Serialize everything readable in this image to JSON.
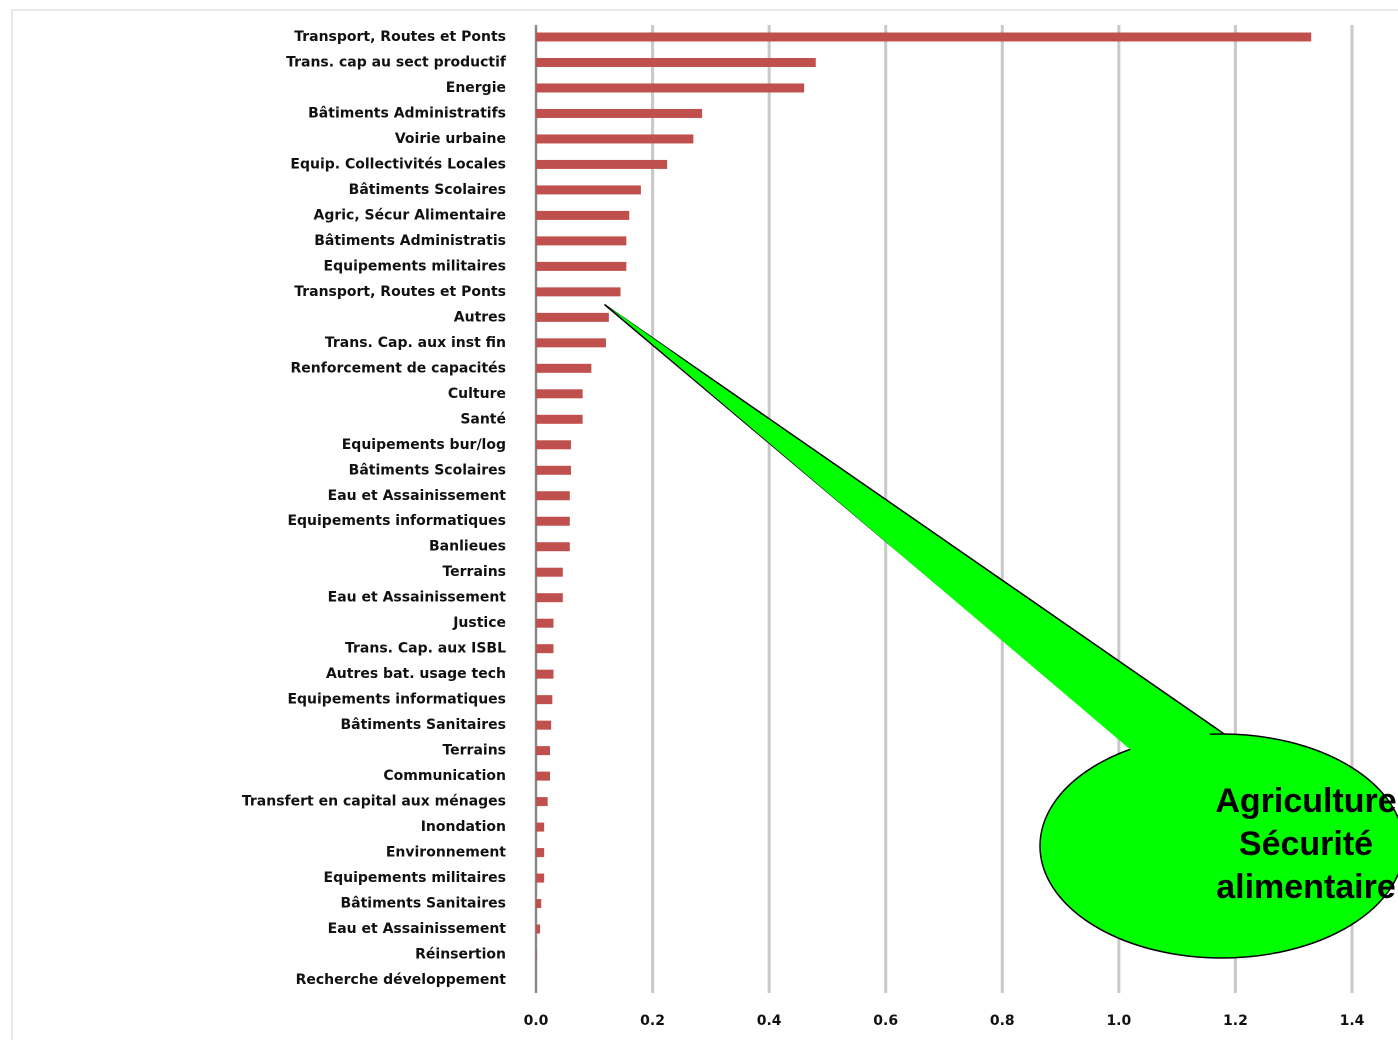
{
  "chart_data": {
    "type": "barh",
    "categories": [
      "Transport, Routes et Ponts",
      "Trans. cap au sect productif",
      "Energie",
      "Bâtiments Administratifs",
      "Voirie urbaine",
      "Equip. Collectivités Locales",
      "Bâtiments Scolaires",
      "Agric, Sécur Alimentaire",
      "Bâtiments Administratis",
      "Equipements militaires",
      "Transport, Routes et Ponts",
      "Autres",
      "Trans. Cap. aux inst fin",
      "Renforcement de capacités",
      "Culture",
      "Santé",
      "Equipements bur/log",
      "Bâtiments Scolaires",
      "Eau et Assainissement",
      "Equipements informatiques",
      "Banlieues",
      "Terrains",
      "Eau et Assainissement",
      "Justice",
      "Trans. Cap. aux ISBL",
      "Autres bat. usage tech",
      "Equipements informatiques",
      "Bâtiments Sanitaires",
      "Terrains",
      "Communication",
      "Transfert en capital aux ménages",
      "Inondation",
      "Environnement",
      "Equipements militaires",
      "Bâtiments Sanitaires",
      "Eau et Assainissement",
      "Réinsertion",
      "Recherche développement"
    ],
    "values": [
      1.33,
      0.48,
      0.46,
      0.285,
      0.27,
      0.225,
      0.18,
      0.16,
      0.155,
      0.155,
      0.145,
      0.125,
      0.12,
      0.095,
      0.08,
      0.08,
      0.06,
      0.06,
      0.058,
      0.058,
      0.058,
      0.046,
      0.046,
      0.03,
      0.03,
      0.03,
      0.028,
      0.026,
      0.024,
      0.024,
      0.02,
      0.014,
      0.014,
      0.014,
      0.009,
      0.007,
      0.001,
      0
    ],
    "color": "#c0504d",
    "xlim": [
      0,
      1.4
    ],
    "xticks": [
      {
        "value": 0,
        "label": "0.0"
      },
      0.2,
      0.4,
      0.6,
      0.8,
      {
        "value": 1,
        "label": "1.0"
      },
      1.2,
      1.4
    ],
    "grid": true,
    "annotation": {
      "lines": [
        "Agriculture",
        "Sécurité",
        "alimentaire"
      ],
      "target": 7,
      "color": "#00ff00"
    }
  }
}
